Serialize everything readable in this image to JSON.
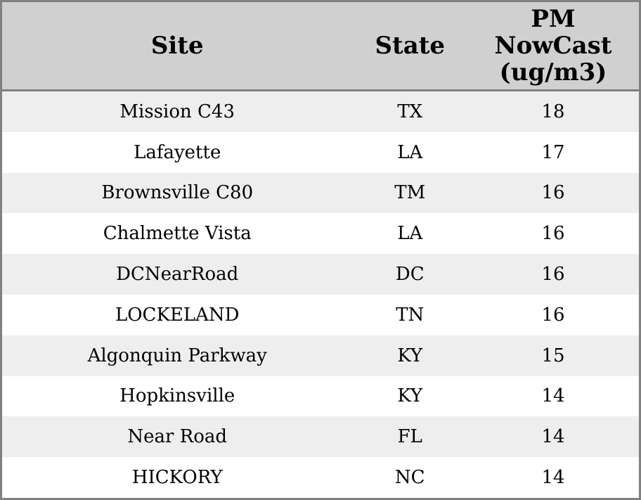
{
  "table": {
    "headers": [
      "Site",
      "State",
      "PM\nNowCast\n(ug/m3)"
    ],
    "rows": [
      [
        "Mission C43",
        "TX",
        "18"
      ],
      [
        "Lafayette",
        "LA",
        "17"
      ],
      [
        "Brownsville C80",
        "TM",
        "16"
      ],
      [
        "Chalmette Vista",
        "LA",
        "16"
      ],
      [
        "DCNearRoad",
        "DC",
        "16"
      ],
      [
        "LOCKELAND",
        "TN",
        "16"
      ],
      [
        "Algonquin Parkway",
        "KY",
        "15"
      ],
      [
        "Hopkinsville",
        "KY",
        "14"
      ],
      [
        "Near Road",
        "FL",
        "14"
      ],
      [
        "HICKORY",
        "NC",
        "14"
      ]
    ]
  },
  "colors": {
    "header_bg": "#d0d0d0",
    "stripe_bg": "#eeeeee",
    "row_bg": "#ffffff",
    "border": "#808080",
    "text": "#000000"
  }
}
